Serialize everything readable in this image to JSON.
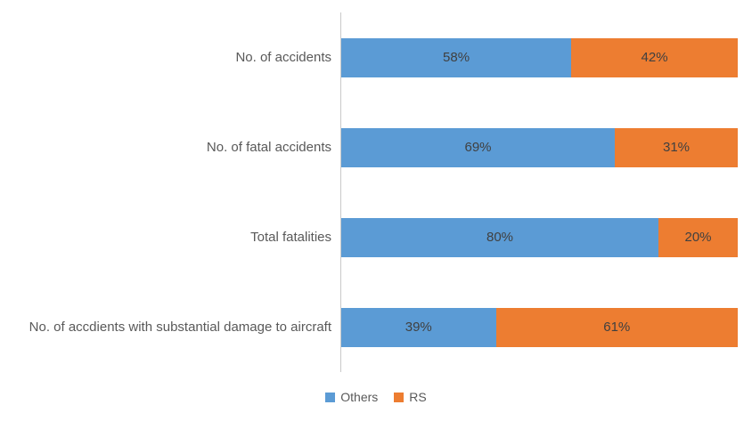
{
  "chart_data": {
    "type": "bar",
    "orientation": "horizontal",
    "stacked": true,
    "title": "",
    "xlabel": "",
    "ylabel": "",
    "xlim": [
      0,
      100
    ],
    "grid": false,
    "legend_position": "bottom",
    "value_format": "percent",
    "categories": [
      "No. of accidents",
      "No. of fatal accidents",
      "Total fatalities",
      "No. of accdients with substantial damage to aircraft"
    ],
    "series": [
      {
        "name": "Others",
        "color": "#5B9BD5",
        "values": [
          58,
          69,
          80,
          39
        ]
      },
      {
        "name": "RS",
        "color": "#ED7D31",
        "values": [
          42,
          31,
          20,
          61
        ]
      }
    ],
    "data_labels": [
      [
        "58%",
        "42%"
      ],
      [
        "69%",
        "31%"
      ],
      [
        "80%",
        "20%"
      ],
      [
        "39%",
        "61%"
      ]
    ],
    "colors": {
      "others_series": "#5B9BD5",
      "rs_series": "#ED7D31",
      "category_text": "#595959",
      "value_text": "#404040",
      "axis_line": "#C9C9C9",
      "background": "#FFFFFF"
    }
  }
}
